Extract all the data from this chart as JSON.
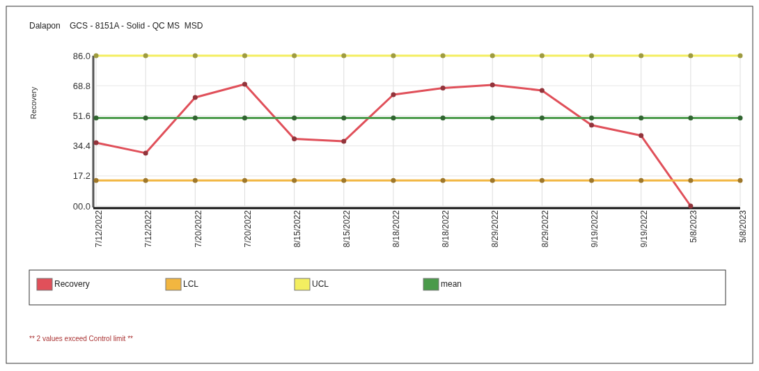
{
  "chart_data": {
    "type": "line",
    "title": "Dalapon    GCS - 8151A - Solid - QC MS  MSD",
    "ylabel": "Recovery",
    "categories": [
      "7/12/2022",
      "7/12/2022",
      "7/20/2022",
      "7/20/2022",
      "8/15/2022",
      "8/15/2022",
      "8/18/2022",
      "8/18/2022",
      "8/29/2022",
      "8/29/2022",
      "9/19/2022",
      "9/19/2022",
      "5/8/2023",
      "5/8/2023"
    ],
    "series": [
      {
        "name": "Recovery",
        "color": "#e0505a",
        "values": [
          36.2,
          30.3,
          62.1,
          69.7,
          38.4,
          37.0,
          63.7,
          67.5,
          69.3,
          66.1,
          46.3,
          40.3,
          0,
          null
        ]
      },
      {
        "name": "LCL",
        "color": "#f2b640",
        "values": [
          14.6,
          14.6,
          14.6,
          14.6,
          14.6,
          14.6,
          14.6,
          14.6,
          14.6,
          14.6,
          14.6,
          14.6,
          14.6,
          14.6
        ]
      },
      {
        "name": "UCL",
        "color": "#f3ee60",
        "values": [
          86,
          86,
          86,
          86,
          86,
          86,
          86,
          86,
          86,
          86,
          86,
          86,
          86,
          86
        ]
      },
      {
        "name": "mean",
        "color": "#4a9a4a",
        "values": [
          50.4,
          50.4,
          50.4,
          50.4,
          50.4,
          50.4,
          50.4,
          50.4,
          50.4,
          50.4,
          50.4,
          50.4,
          50.4,
          50.4
        ]
      }
    ],
    "ylim": [
      0,
      86
    ],
    "yticks": [
      {
        "value": 0,
        "label": "00.0"
      },
      17.2,
      34.4,
      51.6,
      68.8,
      {
        "value": 86,
        "label": "86.0"
      }
    ],
    "grid": true,
    "legend": "bottom",
    "marker": "circle",
    "line_style": "solid",
    "annotations": [
      "** 2 values exceed Control limit **"
    ]
  }
}
